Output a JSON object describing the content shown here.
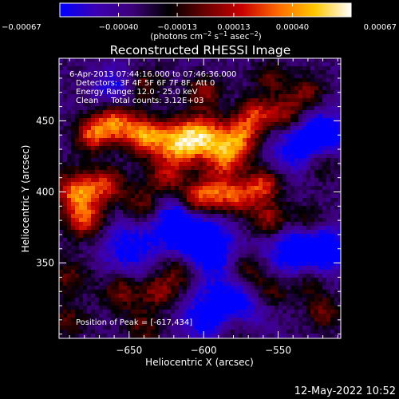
{
  "chart_data": {
    "type": "heatmap",
    "title": "Reconstructed RHESSI Image",
    "xlabel": "Heliocentric X (arcsec)",
    "ylabel": "Heliocentric Y (arcsec)",
    "x_ticks": [
      -650,
      -600,
      -550
    ],
    "y_ticks": [
      350,
      400,
      450
    ],
    "x_tick_labels": [
      "−650",
      "−600",
      "−550"
    ],
    "y_tick_labels": [
      "350",
      "400",
      "450"
    ],
    "xlim": [
      -697,
      -508
    ],
    "ylim": [
      297,
      494
    ],
    "colorbar": {
      "min": -0.00067,
      "max": 0.00067,
      "ticks": [
        -0.00067,
        -0.0004,
        -0.00013,
        0.00013,
        0.0004,
        0.00067
      ],
      "tick_labels": [
        "−0.00067",
        "−0.00040",
        "−0.00013",
        "0.00013",
        "0.00040",
        "0.00067"
      ],
      "unit_text": "(photons cm",
      "unit_sup1": "−2",
      "unit_mid": " s",
      "unit_sup2": "−1",
      "unit_mid2": " asec",
      "unit_sup3": "−2",
      "unit_end": ")",
      "stops": [
        "#0000ff",
        "#3c00b4",
        "#3c0078",
        "#000000",
        "#6a0000",
        "#c80000",
        "#ff6a00",
        "#ffc800",
        "#ffffff"
      ]
    },
    "annotations": [
      "6-Apr-2013 07:44:16.000 to 07:46:36.000",
      "Detectors: 3F 4F 5F 6F 7F 8F, Att 0",
      "Energy Range: 12.0 - 25.0 keV",
      "Clean     Total counts: 3.12E+03"
    ],
    "peak_label": "Position of Peak = [-617,434]",
    "peak_position": [
      -617,
      434
    ],
    "grid": false,
    "hot_spots": [
      {
        "x": -617,
        "y": 434,
        "v": 1.0,
        "s": 11
      },
      {
        "x": -640,
        "y": 440,
        "v": 0.9,
        "s": 9
      },
      {
        "x": -660,
        "y": 448,
        "v": 0.85,
        "s": 9
      },
      {
        "x": -675,
        "y": 440,
        "v": 0.7,
        "s": 8
      },
      {
        "x": -600,
        "y": 440,
        "v": 0.8,
        "s": 10
      },
      {
        "x": -585,
        "y": 425,
        "v": 0.8,
        "s": 10
      },
      {
        "x": -575,
        "y": 440,
        "v": 0.7,
        "s": 9
      },
      {
        "x": -565,
        "y": 455,
        "v": 0.6,
        "s": 8
      },
      {
        "x": -545,
        "y": 455,
        "v": 0.55,
        "s": 9
      },
      {
        "x": -530,
        "y": 470,
        "v": 0.45,
        "s": 8
      },
      {
        "x": -685,
        "y": 400,
        "v": 0.85,
        "s": 10
      },
      {
        "x": -665,
        "y": 405,
        "v": 0.6,
        "s": 9
      },
      {
        "x": -680,
        "y": 380,
        "v": 0.7,
        "s": 9
      },
      {
        "x": -625,
        "y": 410,
        "v": 0.5,
        "s": 9
      },
      {
        "x": -605,
        "y": 395,
        "v": 0.7,
        "s": 8
      },
      {
        "x": -590,
        "y": 400,
        "v": 0.65,
        "s": 9
      },
      {
        "x": -575,
        "y": 395,
        "v": 0.55,
        "s": 8
      },
      {
        "x": -560,
        "y": 405,
        "v": 0.7,
        "s": 8
      },
      {
        "x": -555,
        "y": 380,
        "v": 0.6,
        "s": 9
      },
      {
        "x": -530,
        "y": 380,
        "v": 0.4,
        "s": 8
      },
      {
        "x": -520,
        "y": 420,
        "v": 0.4,
        "s": 8
      },
      {
        "x": -640,
        "y": 390,
        "v": 0.45,
        "s": 9
      },
      {
        "x": -690,
        "y": 340,
        "v": 0.35,
        "s": 9
      },
      {
        "x": -615,
        "y": 345,
        "v": 0.55,
        "s": 9
      },
      {
        "x": -630,
        "y": 330,
        "v": 0.5,
        "s": 8
      },
      {
        "x": -655,
        "y": 330,
        "v": 0.45,
        "s": 9
      },
      {
        "x": -570,
        "y": 345,
        "v": 0.45,
        "s": 9
      },
      {
        "x": -555,
        "y": 330,
        "v": 0.4,
        "s": 8
      },
      {
        "x": -530,
        "y": 335,
        "v": 0.35,
        "s": 8
      },
      {
        "x": -520,
        "y": 315,
        "v": 0.4,
        "s": 8
      },
      {
        "x": -580,
        "y": 305,
        "v": 0.4,
        "s": 9
      },
      {
        "x": -640,
        "y": 305,
        "v": 0.35,
        "s": 9
      },
      {
        "x": -690,
        "y": 310,
        "v": 0.35,
        "s": 8
      },
      {
        "x": -600,
        "y": 470,
        "v": 0.5,
        "s": 8
      },
      {
        "x": -640,
        "y": 475,
        "v": 0.4,
        "s": 8
      },
      {
        "x": -555,
        "y": 480,
        "v": 0.35,
        "s": 8
      },
      {
        "x": -600,
        "y": 360,
        "v": -0.8,
        "s": 14
      },
      {
        "x": -580,
        "y": 320,
        "v": -0.6,
        "s": 14
      },
      {
        "x": -540,
        "y": 360,
        "v": -0.6,
        "s": 14
      },
      {
        "x": -520,
        "y": 440,
        "v": -0.6,
        "s": 13
      },
      {
        "x": -650,
        "y": 360,
        "v": -0.5,
        "s": 13
      },
      {
        "x": -620,
        "y": 380,
        "v": -0.6,
        "s": 12
      },
      {
        "x": -540,
        "y": 430,
        "v": -0.4,
        "s": 12
      },
      {
        "x": -660,
        "y": 475,
        "v": -0.4,
        "s": 10
      },
      {
        "x": -515,
        "y": 360,
        "v": -0.5,
        "s": 12
      },
      {
        "x": -600,
        "y": 310,
        "v": -0.4,
        "s": 12
      }
    ]
  },
  "footer": {
    "timestamp": "12-May-2022 10:52"
  }
}
